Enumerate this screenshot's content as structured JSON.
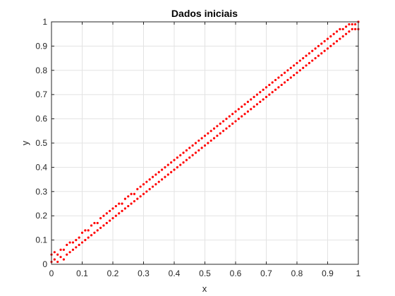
{
  "chart_data": {
    "type": "scatter",
    "title": "Dados iniciais",
    "xlabel": "x",
    "ylabel": "y",
    "xlim": [
      0,
      1
    ],
    "ylim": [
      0,
      1
    ],
    "xticks": [
      "0",
      "0.1",
      "0.2",
      "0.3",
      "0.4",
      "0.5",
      "0.6",
      "0.7",
      "0.8",
      "0.9",
      "1"
    ],
    "yticks": [
      "0",
      "0.1",
      "0.2",
      "0.3",
      "0.4",
      "0.5",
      "0.6",
      "0.7",
      "0.8",
      "0.9",
      "1"
    ],
    "grid": true,
    "marker_color": "#ff0000",
    "series": [
      {
        "points": [
          [
            0.0,
            0.01
          ],
          [
            0.0,
            0.04
          ],
          [
            0.01,
            0.02
          ],
          [
            0.01,
            0.05
          ],
          [
            0.02,
            0.01
          ],
          [
            0.02,
            0.04
          ],
          [
            0.03,
            0.03
          ],
          [
            0.03,
            0.06
          ],
          [
            0.04,
            0.02
          ],
          [
            0.04,
            0.06
          ],
          [
            0.05,
            0.04
          ],
          [
            0.05,
            0.08
          ],
          [
            0.06,
            0.05
          ],
          [
            0.06,
            0.09
          ],
          [
            0.07,
            0.06
          ],
          [
            0.07,
            0.09
          ],
          [
            0.08,
            0.07
          ],
          [
            0.08,
            0.1
          ],
          [
            0.09,
            0.08
          ],
          [
            0.09,
            0.11
          ],
          [
            0.1,
            0.09
          ],
          [
            0.1,
            0.13
          ],
          [
            0.11,
            0.1
          ],
          [
            0.11,
            0.14
          ],
          [
            0.12,
            0.11
          ],
          [
            0.12,
            0.14
          ],
          [
            0.13,
            0.12
          ],
          [
            0.13,
            0.16
          ],
          [
            0.14,
            0.13
          ],
          [
            0.14,
            0.17
          ],
          [
            0.15,
            0.14
          ],
          [
            0.15,
            0.17
          ],
          [
            0.16,
            0.15
          ],
          [
            0.16,
            0.19
          ],
          [
            0.17,
            0.16
          ],
          [
            0.17,
            0.2
          ],
          [
            0.18,
            0.17
          ],
          [
            0.18,
            0.21
          ],
          [
            0.19,
            0.18
          ],
          [
            0.19,
            0.22
          ],
          [
            0.2,
            0.19
          ],
          [
            0.2,
            0.23
          ],
          [
            0.21,
            0.2
          ],
          [
            0.21,
            0.24
          ],
          [
            0.22,
            0.21
          ],
          [
            0.22,
            0.25
          ],
          [
            0.23,
            0.22
          ],
          [
            0.23,
            0.25
          ],
          [
            0.24,
            0.23
          ],
          [
            0.24,
            0.27
          ],
          [
            0.25,
            0.24
          ],
          [
            0.25,
            0.28
          ],
          [
            0.26,
            0.25
          ],
          [
            0.26,
            0.29
          ],
          [
            0.27,
            0.26
          ],
          [
            0.27,
            0.29
          ],
          [
            0.28,
            0.27
          ],
          [
            0.28,
            0.31
          ],
          [
            0.29,
            0.28
          ],
          [
            0.29,
            0.32
          ],
          [
            0.3,
            0.29
          ],
          [
            0.3,
            0.33
          ],
          [
            0.31,
            0.3
          ],
          [
            0.31,
            0.34
          ],
          [
            0.32,
            0.31
          ],
          [
            0.32,
            0.35
          ],
          [
            0.33,
            0.32
          ],
          [
            0.33,
            0.36
          ],
          [
            0.34,
            0.33
          ],
          [
            0.34,
            0.37
          ],
          [
            0.35,
            0.34
          ],
          [
            0.35,
            0.38
          ],
          [
            0.36,
            0.35
          ],
          [
            0.36,
            0.39
          ],
          [
            0.37,
            0.36
          ],
          [
            0.37,
            0.4
          ],
          [
            0.38,
            0.37
          ],
          [
            0.38,
            0.41
          ],
          [
            0.39,
            0.38
          ],
          [
            0.39,
            0.42
          ],
          [
            0.4,
            0.39
          ],
          [
            0.4,
            0.43
          ],
          [
            0.41,
            0.4
          ],
          [
            0.41,
            0.44
          ],
          [
            0.42,
            0.41
          ],
          [
            0.42,
            0.45
          ],
          [
            0.43,
            0.42
          ],
          [
            0.43,
            0.46
          ],
          [
            0.44,
            0.43
          ],
          [
            0.44,
            0.47
          ],
          [
            0.45,
            0.44
          ],
          [
            0.45,
            0.48
          ],
          [
            0.46,
            0.45
          ],
          [
            0.46,
            0.49
          ],
          [
            0.47,
            0.46
          ],
          [
            0.47,
            0.5
          ],
          [
            0.48,
            0.47
          ],
          [
            0.48,
            0.51
          ],
          [
            0.49,
            0.48
          ],
          [
            0.49,
            0.52
          ],
          [
            0.5,
            0.49
          ],
          [
            0.5,
            0.53
          ],
          [
            0.51,
            0.5
          ],
          [
            0.51,
            0.54
          ],
          [
            0.52,
            0.51
          ],
          [
            0.52,
            0.55
          ],
          [
            0.53,
            0.52
          ],
          [
            0.53,
            0.56
          ],
          [
            0.54,
            0.53
          ],
          [
            0.54,
            0.57
          ],
          [
            0.55,
            0.54
          ],
          [
            0.55,
            0.58
          ],
          [
            0.56,
            0.55
          ],
          [
            0.56,
            0.59
          ],
          [
            0.57,
            0.56
          ],
          [
            0.57,
            0.6
          ],
          [
            0.58,
            0.57
          ],
          [
            0.58,
            0.61
          ],
          [
            0.59,
            0.58
          ],
          [
            0.59,
            0.62
          ],
          [
            0.6,
            0.59
          ],
          [
            0.6,
            0.63
          ],
          [
            0.61,
            0.6
          ],
          [
            0.61,
            0.64
          ],
          [
            0.62,
            0.61
          ],
          [
            0.62,
            0.65
          ],
          [
            0.63,
            0.62
          ],
          [
            0.63,
            0.66
          ],
          [
            0.64,
            0.63
          ],
          [
            0.64,
            0.67
          ],
          [
            0.65,
            0.64
          ],
          [
            0.65,
            0.68
          ],
          [
            0.66,
            0.65
          ],
          [
            0.66,
            0.69
          ],
          [
            0.67,
            0.66
          ],
          [
            0.67,
            0.7
          ],
          [
            0.68,
            0.67
          ],
          [
            0.68,
            0.71
          ],
          [
            0.69,
            0.68
          ],
          [
            0.69,
            0.72
          ],
          [
            0.7,
            0.69
          ],
          [
            0.7,
            0.73
          ],
          [
            0.71,
            0.7
          ],
          [
            0.71,
            0.74
          ],
          [
            0.72,
            0.71
          ],
          [
            0.72,
            0.75
          ],
          [
            0.73,
            0.72
          ],
          [
            0.73,
            0.76
          ],
          [
            0.74,
            0.73
          ],
          [
            0.74,
            0.77
          ],
          [
            0.75,
            0.74
          ],
          [
            0.75,
            0.78
          ],
          [
            0.76,
            0.75
          ],
          [
            0.76,
            0.79
          ],
          [
            0.77,
            0.76
          ],
          [
            0.77,
            0.8
          ],
          [
            0.78,
            0.77
          ],
          [
            0.78,
            0.81
          ],
          [
            0.79,
            0.78
          ],
          [
            0.79,
            0.82
          ],
          [
            0.8,
            0.79
          ],
          [
            0.8,
            0.83
          ],
          [
            0.81,
            0.8
          ],
          [
            0.81,
            0.84
          ],
          [
            0.82,
            0.81
          ],
          [
            0.82,
            0.85
          ],
          [
            0.83,
            0.82
          ],
          [
            0.83,
            0.86
          ],
          [
            0.84,
            0.83
          ],
          [
            0.84,
            0.87
          ],
          [
            0.85,
            0.84
          ],
          [
            0.85,
            0.88
          ],
          [
            0.86,
            0.85
          ],
          [
            0.86,
            0.89
          ],
          [
            0.87,
            0.86
          ],
          [
            0.87,
            0.9
          ],
          [
            0.88,
            0.87
          ],
          [
            0.88,
            0.91
          ],
          [
            0.89,
            0.88
          ],
          [
            0.89,
            0.92
          ],
          [
            0.9,
            0.89
          ],
          [
            0.9,
            0.93
          ],
          [
            0.91,
            0.9
          ],
          [
            0.91,
            0.94
          ],
          [
            0.92,
            0.91
          ],
          [
            0.92,
            0.95
          ],
          [
            0.93,
            0.92
          ],
          [
            0.93,
            0.96
          ],
          [
            0.94,
            0.93
          ],
          [
            0.94,
            0.97
          ],
          [
            0.95,
            0.94
          ],
          [
            0.95,
            0.97
          ],
          [
            0.96,
            0.95
          ],
          [
            0.96,
            0.98
          ],
          [
            0.97,
            0.96
          ],
          [
            0.97,
            0.99
          ],
          [
            0.98,
            0.97
          ],
          [
            0.98,
            0.99
          ],
          [
            0.99,
            0.97
          ],
          [
            0.99,
            0.99
          ],
          [
            1.0,
            0.97
          ],
          [
            1.0,
            1.0
          ]
        ]
      }
    ]
  }
}
